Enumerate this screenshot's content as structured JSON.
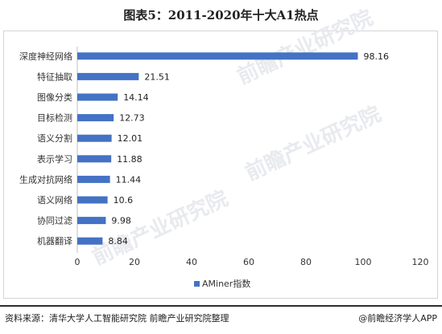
{
  "title": "图表5：2011-2020年十大A1热点",
  "watermark": "前瞻产业研究院",
  "footer": {
    "source": "资料来源：清华大学人工智能研究院 前瞻产业研究院整理",
    "brand": "@前瞻经济学人APP"
  },
  "chart_data": {
    "type": "bar",
    "orientation": "horizontal",
    "categories": [
      "深度神经网络",
      "特征抽取",
      "图像分类",
      "目标检测",
      "语义分割",
      "表示学习",
      "生成对抗网络",
      "语义网络",
      "协同过滤",
      "机器翻译"
    ],
    "values": [
      98.16,
      21.51,
      14.14,
      12.73,
      12.01,
      11.88,
      11.44,
      10.6,
      9.98,
      8.84
    ],
    "value_labels": [
      "98.16",
      "21.51",
      "14.14",
      "12.73",
      "12.01",
      "11.88",
      "11.44",
      "10.6",
      "9.98",
      "8.84"
    ],
    "xticks": [
      "0",
      "20",
      "40",
      "60",
      "80",
      "100",
      "120"
    ],
    "xlim": [
      0,
      120
    ],
    "series": [
      {
        "name": "AMiner指数",
        "color": "#4472c4"
      }
    ],
    "legend_position": "bottom",
    "grid": false
  }
}
